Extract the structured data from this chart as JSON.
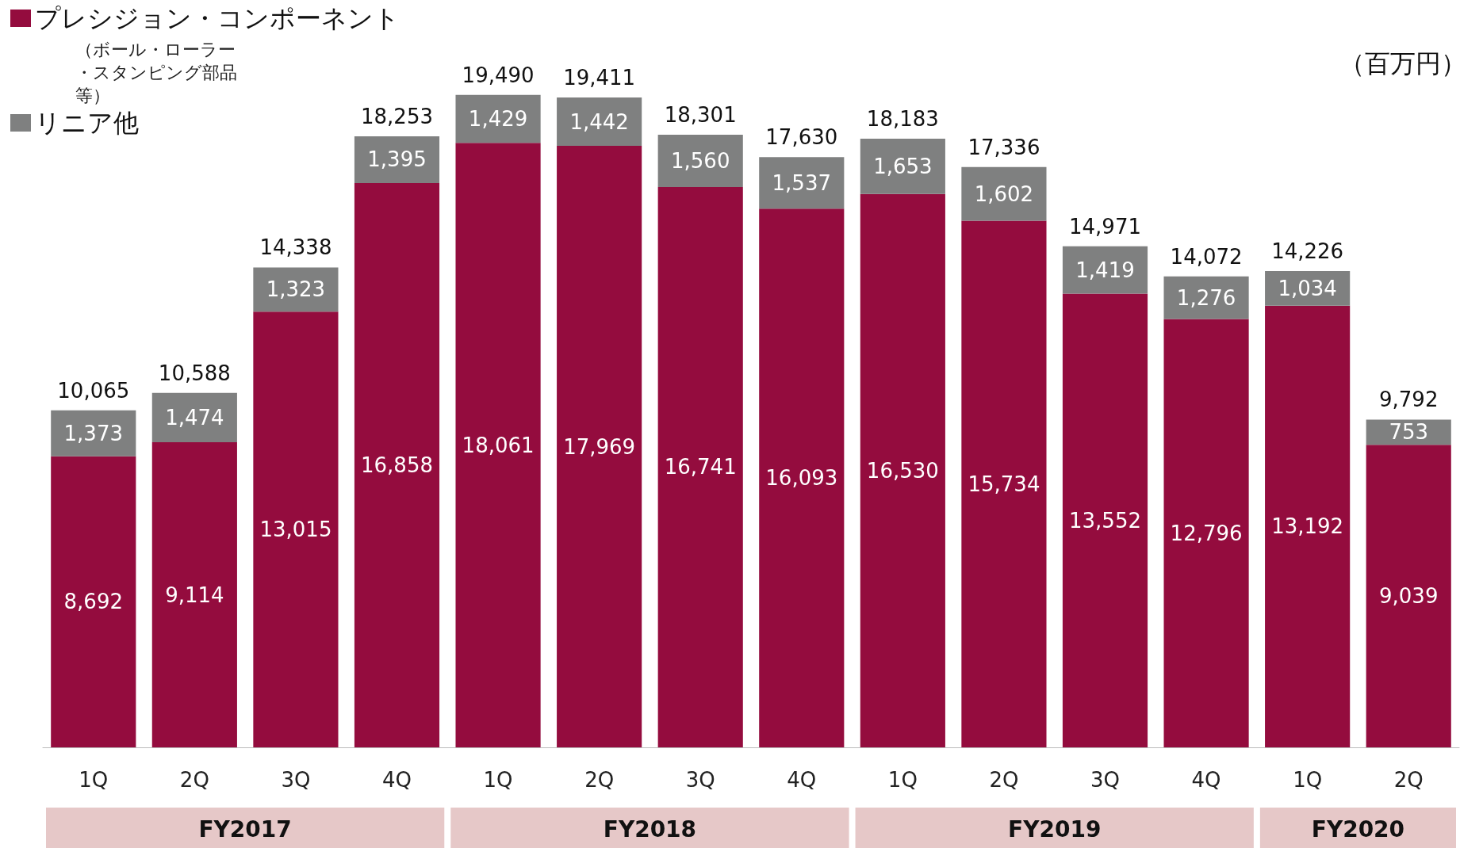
{
  "chart_data": {
    "type": "bar",
    "stacked": true,
    "legend": "top left",
    "ylabel": "（百万円）",
    "categories": [
      "1Q",
      "2Q",
      "3Q",
      "4Q",
      "1Q",
      "2Q",
      "3Q",
      "4Q",
      "1Q",
      "2Q",
      "3Q",
      "4Q",
      "1Q",
      "2Q"
    ],
    "series": [
      {
        "name": "プレシジョン・コンポーネント",
        "color": "#940c3e",
        "values": [
          8692,
          9114,
          13015,
          16858,
          18061,
          17969,
          16741,
          16093,
          16530,
          15734,
          13552,
          12796,
          13192,
          9039
        ],
        "value_labels": [
          "8,692",
          "9,114",
          "13,015",
          "16,858",
          "18,061",
          "17,969",
          "16,741",
          "16,093",
          "16,530",
          "15,734",
          "13,552",
          "12,796",
          "13,192",
          "9,039"
        ]
      },
      {
        "name": "リニア他",
        "color": "#7f8080",
        "values": [
          1373,
          1474,
          1323,
          1395,
          1429,
          1442,
          1560,
          1537,
          1653,
          1602,
          1419,
          1276,
          1034,
          753
        ],
        "value_labels": [
          "1,373",
          "1,474",
          "1,323",
          "1,395",
          "1,429",
          "1,442",
          "1,560",
          "1,537",
          "1,653",
          "1,602",
          "1,419",
          "1,276",
          "1,034",
          "753"
        ]
      }
    ],
    "totals": [
      "10,065",
      "10,588",
      "14,338",
      "18,253",
      "19,490",
      "19,411",
      "18,301",
      "17,630",
      "18,183",
      "17,336",
      "14,971",
      "14,072",
      "14,226",
      "9,792"
    ],
    "annotations": [
      "（ボール・ローラー・スタンピング部品等）",
      "FY2017",
      "FY2018",
      "FY2019",
      "FY2020"
    ]
  }
}
